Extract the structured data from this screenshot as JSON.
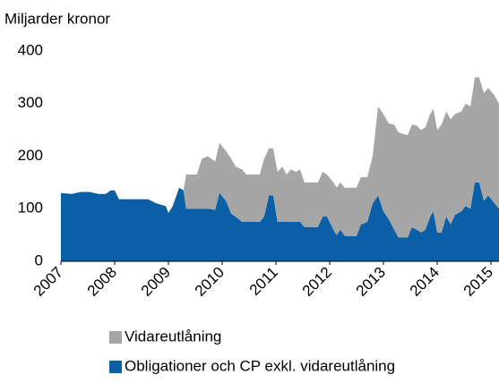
{
  "chart_data": {
    "type": "stacked_area",
    "y_axis_label": "Miljarder kronor",
    "x": [
      2007.0,
      2007.2,
      2007.37,
      2007.53,
      2007.7,
      2007.83,
      2007.93,
      2008.0,
      2008.08,
      2008.62,
      2008.78,
      2008.95,
      2009.0,
      2009.08,
      2009.2,
      2009.28,
      2009.33,
      2009.53,
      2009.62,
      2009.73,
      2009.87,
      2009.95,
      2010.07,
      2010.17,
      2010.25,
      2010.37,
      2010.45,
      2010.7,
      2010.78,
      2010.87,
      2010.95,
      2011.03,
      2011.12,
      2011.2,
      2011.28,
      2011.37,
      2011.45,
      2011.53,
      2011.78,
      2011.87,
      2011.95,
      2012.07,
      2012.13,
      2012.2,
      2012.28,
      2012.5,
      2012.58,
      2012.7,
      2012.8,
      2012.9,
      2013.0,
      2013.1,
      2013.2,
      2013.28,
      2013.45,
      2013.53,
      2013.62,
      2013.7,
      2013.78,
      2013.87,
      2013.93,
      2014.0,
      2014.08,
      2014.17,
      2014.25,
      2014.33,
      2014.45,
      2014.53,
      2014.62,
      2014.7,
      2014.78,
      2014.87,
      2014.95,
      2015.07,
      2015.15
    ],
    "series": [
      {
        "name": "Obligationer och CP exkl. vidareutlåning",
        "color": "#0a5fa6",
        "values": [
          130,
          128,
          132,
          132,
          128,
          128,
          135,
          135,
          118,
          118,
          110,
          105,
          92,
          105,
          140,
          135,
          100,
          100,
          100,
          100,
          98,
          130,
          115,
          90,
          85,
          75,
          75,
          75,
          85,
          125,
          125,
          75,
          75,
          75,
          75,
          75,
          75,
          65,
          65,
          85,
          85,
          60,
          50,
          60,
          48,
          48,
          70,
          75,
          110,
          125,
          95,
          80,
          60,
          45,
          45,
          65,
          60,
          55,
          60,
          85,
          95,
          55,
          55,
          85,
          70,
          88,
          95,
          105,
          100,
          150,
          150,
          115,
          125,
          110,
          100
        ]
      },
      {
        "name": "Vidareutlåning",
        "color": "#a6a6a6",
        "values": [
          0,
          0,
          0,
          0,
          0,
          0,
          0,
          0,
          0,
          0,
          0,
          0,
          0,
          0,
          0,
          0,
          65,
          65,
          95,
          100,
          92,
          95,
          95,
          105,
          95,
          100,
          90,
          90,
          110,
          90,
          90,
          95,
          105,
          90,
          100,
          95,
          100,
          85,
          85,
          85,
          80,
          90,
          90,
          90,
          92,
          92,
          90,
          85,
          90,
          170,
          185,
          182,
          200,
          200,
          195,
          195,
          198,
          195,
          195,
          195,
          195,
          195,
          205,
          200,
          200,
          192,
          190,
          195,
          195,
          200,
          200,
          205,
          205,
          205,
          200
        ]
      }
    ],
    "xlim": [
      2007,
      2015.15
    ],
    "xticks": [
      2007,
      2008,
      2009,
      2010,
      2011,
      2012,
      2013,
      2014,
      2015
    ],
    "ylim": [
      0,
      400
    ],
    "yticks": [
      0,
      100,
      200,
      300,
      400
    ],
    "legend": "bottom"
  }
}
